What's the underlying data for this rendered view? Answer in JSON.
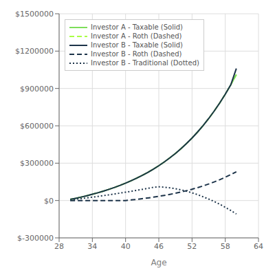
{
  "chart_data": {
    "type": "line",
    "xlabel": "Age",
    "x": [
      30,
      31,
      32,
      33,
      34,
      35,
      36,
      37,
      38,
      39,
      40,
      41,
      42,
      43,
      44,
      45,
      46,
      47,
      48,
      49,
      50,
      51,
      52,
      53,
      54,
      55,
      56,
      57,
      58,
      59,
      60
    ],
    "xlim": [
      28,
      64
    ],
    "xticks": [
      28,
      34,
      40,
      46,
      52,
      58,
      64
    ],
    "ylim": [
      -300000,
      1500000
    ],
    "yticks": [
      {
        "value": -300000,
        "label": "$-300000"
      },
      {
        "value": 0,
        "label": "$0"
      },
      {
        "value": 300000,
        "label": "$300000"
      },
      {
        "value": 600000,
        "label": "$600000"
      },
      {
        "value": 900000,
        "label": "$900000"
      },
      {
        "value": 1200000,
        "label": "$1200000"
      },
      {
        "value": 1500000,
        "label": "$1500000"
      }
    ],
    "grid": true,
    "legend": "upper left",
    "series": [
      {
        "name": "Investor A - Taxable (Solid)",
        "color": "#7dde5a",
        "line_style": "solid",
        "values": [
          8654,
          17942,
          27910,
          38610,
          50100,
          62443,
          75708,
          89970,
          105315,
          121834,
          139627,
          158803,
          179480,
          201787,
          225861,
          251851,
          279912,
          310212,
          342932,
          378266,
          416422,
          457626,
          502123,
          550172,
          602051,
          658053,
          718496,
          783713,
          854069,
          929955,
          1011793
        ]
      },
      {
        "name": "Investor A - Roth (Dashed)",
        "color": "#aaff44",
        "line_style": "dashed",
        "values": [
          8654,
          17942,
          27910,
          38610,
          50100,
          62443,
          75708,
          89970,
          105315,
          121834,
          139627,
          158803,
          179480,
          201787,
          225861,
          251851,
          279912,
          310212,
          342932,
          378266,
          416422,
          457626,
          502123,
          550172,
          602051,
          658053,
          718496,
          783713,
          854069,
          929955,
          1011793
        ]
      },
      {
        "name": "Investor B - Taxable (Solid)",
        "color": "#1c3349",
        "line_style": "solid",
        "values": [
          8654,
          17942,
          27910,
          38610,
          50100,
          62443,
          75708,
          89970,
          105315,
          121834,
          139627,
          158803,
          179480,
          201787,
          225861,
          251851,
          279912,
          310212,
          342932,
          378266,
          416422,
          457626,
          502123,
          550172,
          602051,
          658053,
          718496,
          783713,
          854069,
          929955,
          1060000
        ]
      },
      {
        "name": "Investor B - Roth (Dashed)",
        "color": "#1c3349",
        "line_style": "dashed",
        "values": [
          0,
          0,
          0,
          0,
          0,
          0,
          0,
          0,
          0,
          0,
          0,
          4500,
          9400,
          14700,
          20500,
          26800,
          33700,
          41200,
          49400,
          58400,
          68200,
          78900,
          90600,
          103400,
          117400,
          132600,
          149200,
          167300,
          186900,
          208200,
          231300
        ]
      },
      {
        "name": "Investor B - Traditional (Dotted)",
        "color": "#1c3349",
        "line_style": "dotted",
        "values": [
          5000,
          10200,
          15600,
          21200,
          27000,
          33000,
          39300,
          45800,
          52600,
          59600,
          66800,
          74200,
          81900,
          89700,
          97700,
          106000,
          110000,
          107000,
          102000,
          95000,
          86000,
          75000,
          62000,
          47000,
          30000,
          12000,
          -8000,
          -30000,
          -54000,
          -80000,
          -108000
        ]
      }
    ]
  }
}
